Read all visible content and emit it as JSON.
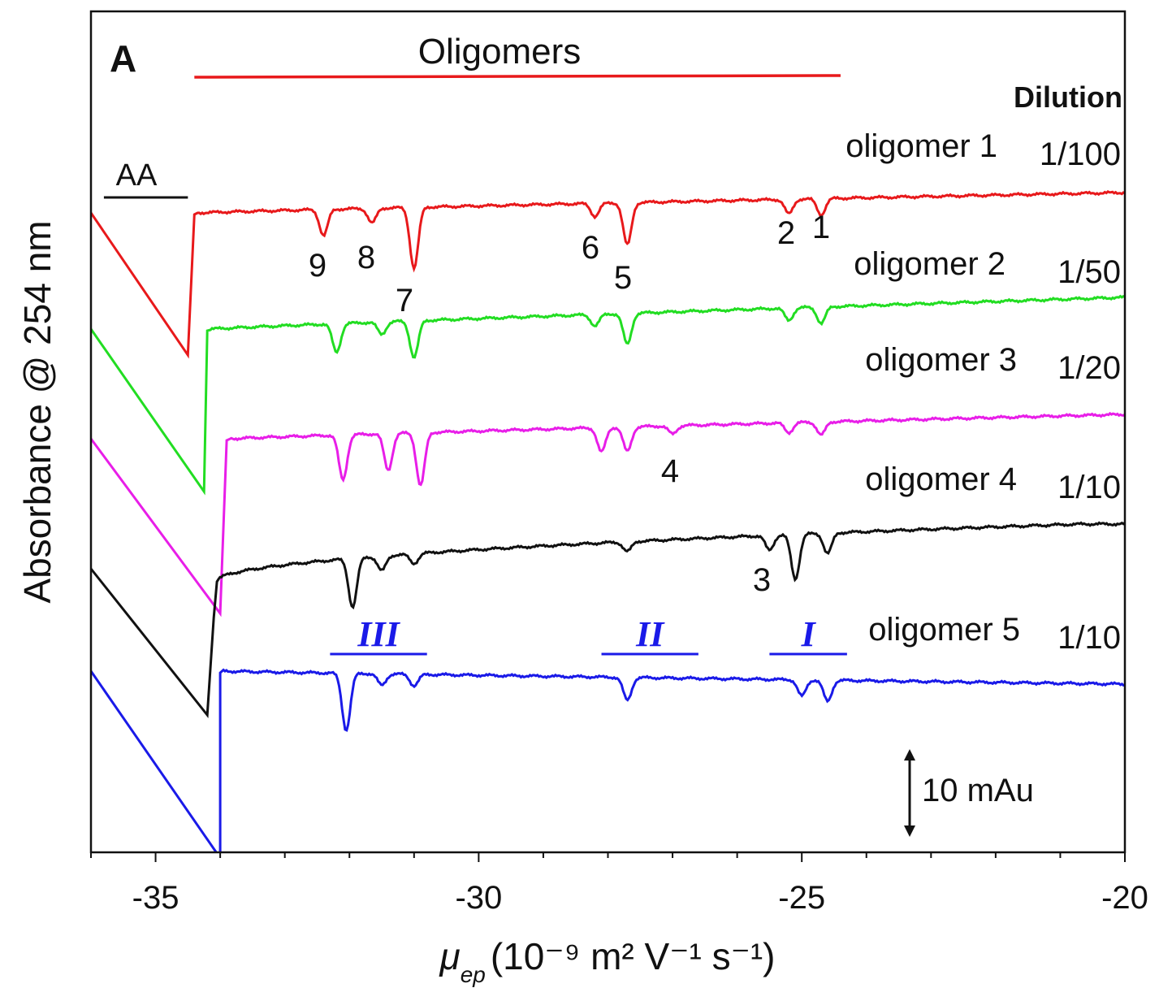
{
  "chart_data": {
    "type": "line",
    "panel_label": "A",
    "xlabel": {
      "symbol": "μ",
      "subscript": "ep",
      "text": "(10⁻⁹ m² V⁻¹ s⁻¹)"
    },
    "ylabel": "Absorbance @ 254 nm",
    "xlim": [
      -36,
      -20
    ],
    "xticks": [
      -35,
      -30,
      -25,
      -20
    ],
    "scale_bar": "10 mAu",
    "oligomers_label": "Oligomers",
    "oligomers_range": [
      -34.4,
      -24.4
    ],
    "aa_label": "AA",
    "aa_range": [
      -35.8,
      -34.5
    ],
    "dilution_title": "Dilution",
    "series": [
      {
        "name": "oligomer 1",
        "dilution": "1/100",
        "color": "#e8191b",
        "baseline": 262,
        "end_baseline": 237,
        "eof_x": -34.5,
        "eof_drop": 175,
        "rise_x": -34.4,
        "peaks": [
          [
            -32.4,
            32
          ],
          [
            -31.65,
            18
          ],
          [
            -31.0,
            75
          ],
          [
            -28.2,
            16
          ],
          [
            -27.7,
            52
          ],
          [
            -25.2,
            18
          ],
          [
            -24.7,
            20
          ]
        ]
      },
      {
        "name": "oligomer 2",
        "dilution": "1/50",
        "color": "#22dd22",
        "baseline": 405,
        "end_baseline": 366,
        "eof_x": -34.25,
        "eof_drop": 200,
        "rise_x": -34.2,
        "peaks": [
          [
            -32.2,
            35
          ],
          [
            -31.5,
            15
          ],
          [
            -31.0,
            45
          ],
          [
            -28.2,
            14
          ],
          [
            -27.7,
            38
          ],
          [
            -25.2,
            15
          ],
          [
            -24.7,
            20
          ]
        ]
      },
      {
        "name": "oligomer 3",
        "dilution": "1/20",
        "color": "#e81ee8",
        "baseline": 540,
        "end_baseline": 510,
        "eof_x": -34.0,
        "eof_drop": 215,
        "rise_x": -33.9,
        "peaks": [
          [
            -32.1,
            55
          ],
          [
            -31.4,
            45
          ],
          [
            -30.9,
            65
          ],
          [
            -28.1,
            30
          ],
          [
            -27.7,
            30
          ],
          [
            -27.0,
            10
          ],
          [
            -25.2,
            12
          ],
          [
            -24.7,
            16
          ]
        ]
      },
      {
        "name": "oligomer 4",
        "dilution": "1/10",
        "color": "#111111",
        "baseline": 720,
        "end_baseline": 650,
        "eof_x": -34.2,
        "eof_drop": 160,
        "rise_x": -34.1,
        "peaks": [
          [
            -31.95,
            60
          ],
          [
            -31.5,
            18
          ],
          [
            -31.0,
            12
          ],
          [
            -27.7,
            12
          ],
          [
            -25.5,
            18
          ],
          [
            -25.1,
            55
          ],
          [
            -24.6,
            25
          ]
        ]
      },
      {
        "name": "oligomer 5",
        "dilution": "1/10",
        "color": "#1a1ae8",
        "baseline": 826,
        "end_baseline": 842,
        "eof_x": -34.0,
        "eof_drop": 230,
        "rise_x": -34.0,
        "peaks": [
          [
            -32.05,
            70
          ],
          [
            -31.5,
            14
          ],
          [
            -31.0,
            14
          ],
          [
            -27.7,
            28
          ],
          [
            -25.0,
            20
          ],
          [
            -24.6,
            26
          ]
        ]
      }
    ],
    "peak_labels": [
      {
        "text": "9",
        "x": -32.35,
        "series": "oligomer 1"
      },
      {
        "text": "8",
        "x": -31.6,
        "series": "oligomer 1"
      },
      {
        "text": "7",
        "x": -31.0,
        "series": "oligomer 1"
      },
      {
        "text": "6",
        "x": -28.1,
        "series": "oligomer 1"
      },
      {
        "text": "5",
        "x": -27.65,
        "series": "oligomer 1"
      },
      {
        "text": "2",
        "x": -25.25,
        "series": "oligomer 1"
      },
      {
        "text": "1",
        "x": -24.7,
        "series": "oligomer 1"
      },
      {
        "text": "4",
        "x": -27.0,
        "series": "oligomer 3"
      },
      {
        "text": "3",
        "x": -25.6,
        "series": "oligomer 4"
      }
    ],
    "groups": [
      {
        "label": "III",
        "range": [
          -32.3,
          -30.8
        ]
      },
      {
        "label": "II",
        "range": [
          -28.1,
          -26.6
        ]
      },
      {
        "label": "I",
        "range": [
          -25.5,
          -24.3
        ]
      }
    ]
  }
}
